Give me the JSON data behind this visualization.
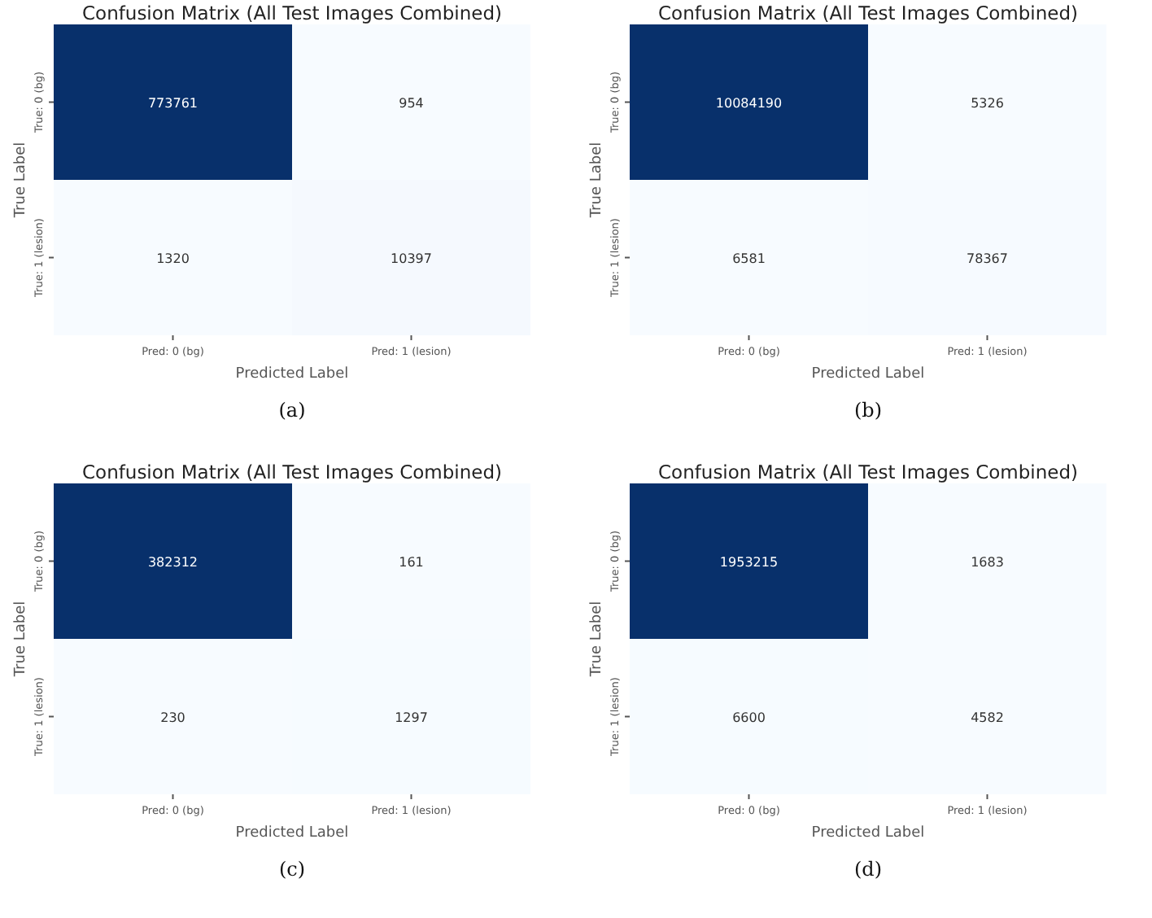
{
  "chart_data": [
    {
      "type": "heatmap",
      "title": "Confusion Matrix (All Test Images Combined)",
      "xlabel": "Predicted Label",
      "ylabel": "True Label",
      "categories": [
        "Pred: 0 (bg)",
        "Pred: 1 (lesion)"
      ],
      "y_categories": [
        "True: 0 (bg)",
        "True: 1 (lesion)"
      ],
      "cells": [
        [
          773761,
          954
        ],
        [
          1320,
          10397
        ]
      ],
      "data_labels": true,
      "annotations": [
        "(a)"
      ]
    },
    {
      "type": "heatmap",
      "title": "Confusion Matrix (All Test Images Combined)",
      "xlabel": "Predicted Label",
      "ylabel": "True Label",
      "categories": [
        "Pred: 0 (bg)",
        "Pred: 1 (lesion)"
      ],
      "y_categories": [
        "True: 0 (bg)",
        "True: 1 (lesion)"
      ],
      "cells": [
        [
          10084190,
          5326
        ],
        [
          6581,
          78367
        ]
      ],
      "data_labels": true,
      "annotations": [
        "(b)"
      ]
    },
    {
      "type": "heatmap",
      "title": "Confusion Matrix (All Test Images Combined)",
      "xlabel": "Predicted Label",
      "ylabel": "True Label",
      "categories": [
        "Pred: 0 (bg)",
        "Pred: 1 (lesion)"
      ],
      "y_categories": [
        "True: 0 (bg)",
        "True: 1 (lesion)"
      ],
      "cells": [
        [
          382312,
          161
        ],
        [
          230,
          1297
        ]
      ],
      "data_labels": true,
      "annotations": [
        "(c)"
      ]
    },
    {
      "type": "heatmap",
      "title": "Confusion Matrix (All Test Images Combined)",
      "xlabel": "Predicted Label",
      "ylabel": "True Label",
      "categories": [
        "Pred: 0 (bg)",
        "Pred: 1 (lesion)"
      ],
      "y_categories": [
        "True: 0 (bg)",
        "True: 1 (lesion)"
      ],
      "cells": [
        [
          1953215,
          1683
        ],
        [
          6600,
          4582
        ]
      ],
      "data_labels": true,
      "annotations": [
        "(d)"
      ]
    }
  ]
}
